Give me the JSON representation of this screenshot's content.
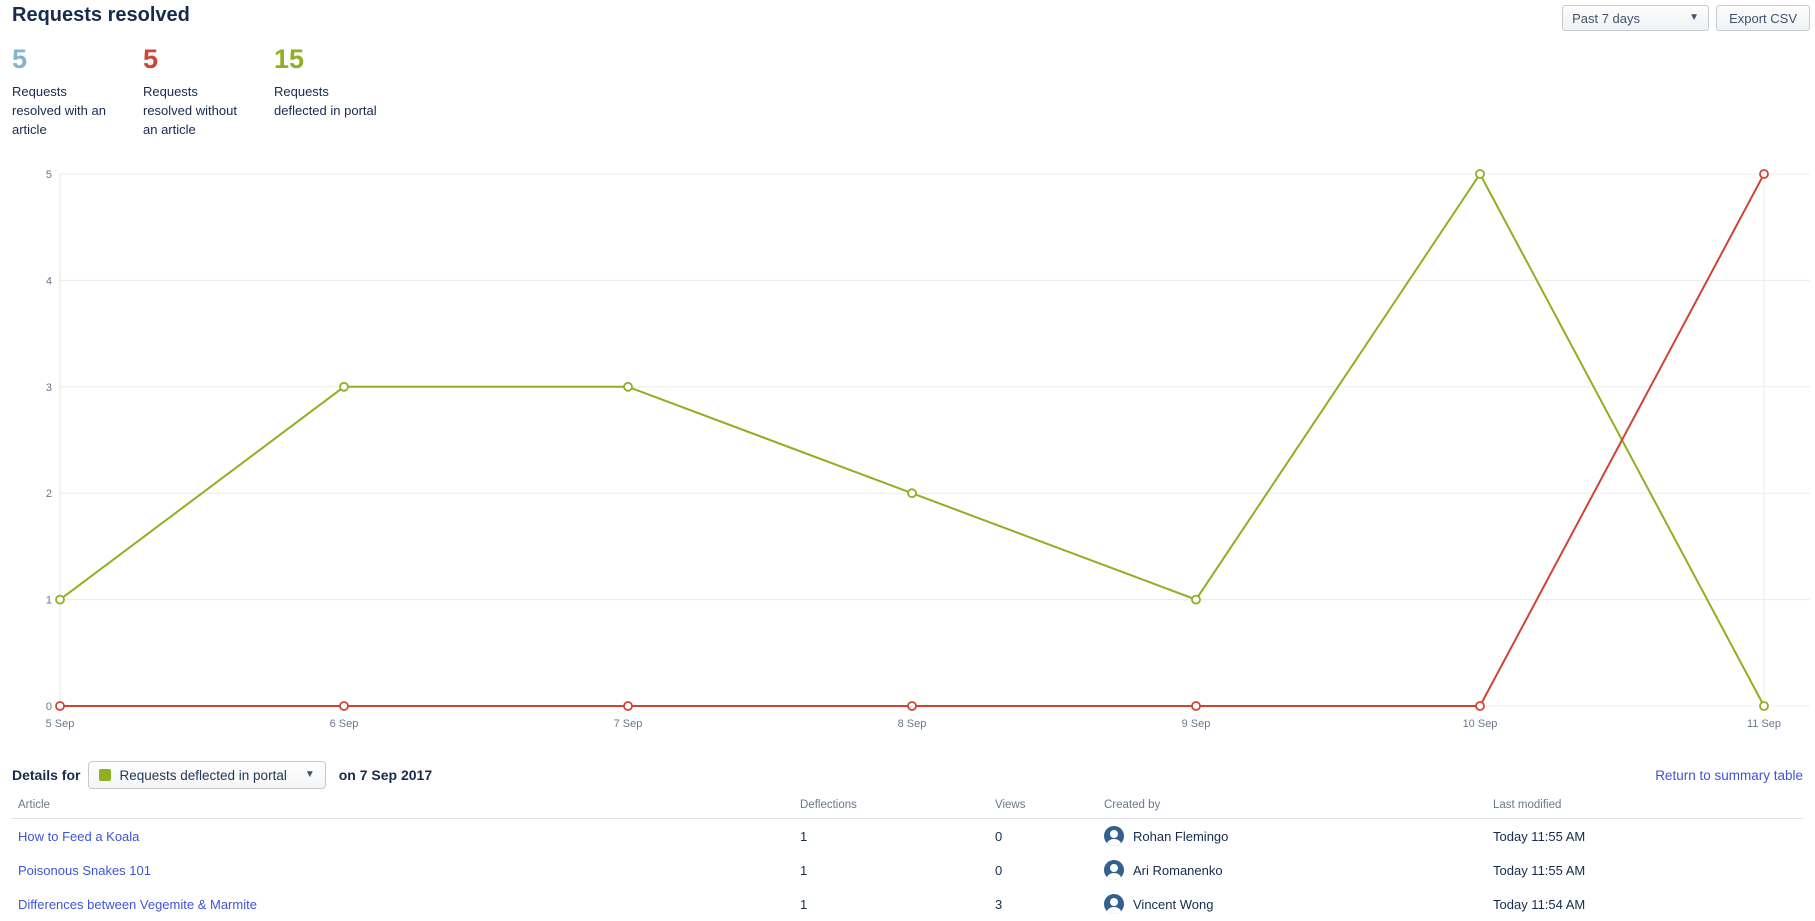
{
  "header": {
    "title": "Requests resolved",
    "period_selector": {
      "value": "Past 7 days"
    },
    "export_button_label": "Export CSV"
  },
  "stats": [
    {
      "value": "5",
      "label": "Requests resolved with an article",
      "color": "#85b2cd"
    },
    {
      "value": "5",
      "label": "Requests resolved without an article",
      "color": "#d04437"
    },
    {
      "value": "15",
      "label": "Requests deflected in portal",
      "color": "#8eb021"
    }
  ],
  "chart_data": {
    "type": "line",
    "title": "",
    "xlabel": "",
    "ylabel": "",
    "x": [
      "5 Sep",
      "6 Sep",
      "7 Sep",
      "8 Sep",
      "9 Sep",
      "10 Sep",
      "11 Sep"
    ],
    "series": [
      {
        "name": "Requests deflected in portal",
        "color": "#8eb021",
        "values": [
          1,
          3,
          3,
          2,
          1,
          5,
          0
        ]
      },
      {
        "name": "Requests resolved without an article",
        "color": "#d04437",
        "values": [
          0,
          0,
          0,
          0,
          0,
          0,
          5
        ]
      }
    ],
    "ylim": [
      0,
      5
    ],
    "yticks": [
      0,
      1,
      2,
      3,
      4,
      5
    ],
    "grid": true,
    "legend": "none"
  },
  "details": {
    "prefix_label": "Details for",
    "metric_selector": {
      "value": "Requests deflected in portal",
      "swatch_color": "#8eb021"
    },
    "date_label": "on 7 Sep 2017",
    "return_link": "Return to summary table"
  },
  "table": {
    "columns": [
      "Article",
      "Deflections",
      "Views",
      "Created by",
      "Last modified"
    ],
    "rows": [
      {
        "article": "How to Feed a Koala",
        "deflections": "1",
        "views": "0",
        "created_by": "Rohan Flemingo",
        "last_modified": "Today 11:55 AM"
      },
      {
        "article": "Poisonous Snakes 101",
        "deflections": "1",
        "views": "0",
        "created_by": "Ari Romanenko",
        "last_modified": "Today 11:55 AM"
      },
      {
        "article": "Differences between Vegemite & Marmite",
        "deflections": "1",
        "views": "3",
        "created_by": "Vincent Wong",
        "last_modified": "Today 11:54 AM"
      }
    ]
  }
}
